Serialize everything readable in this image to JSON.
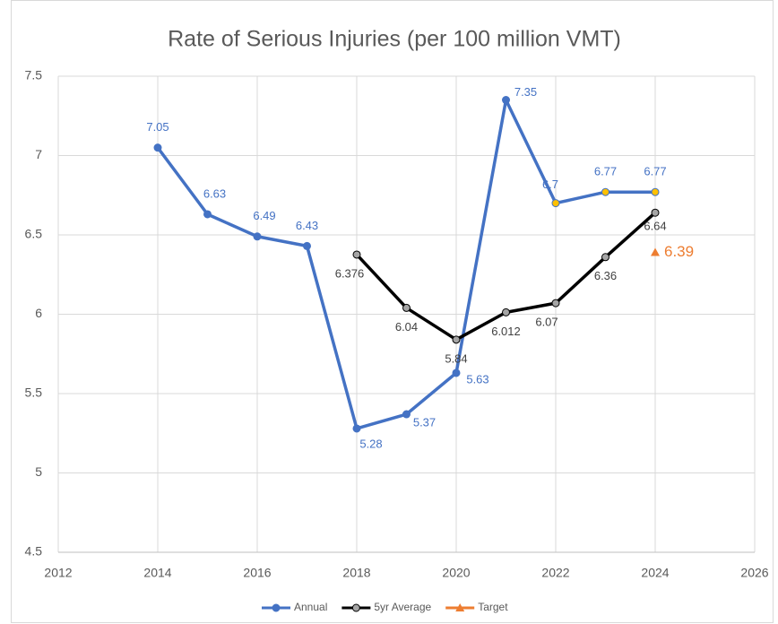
{
  "chart_data": {
    "type": "line",
    "title": "Rate of Serious Injuries (per 100 million VMT)",
    "xlim": [
      2012,
      2026
    ],
    "xticks": [
      2012,
      2014,
      2016,
      2018,
      2020,
      2022,
      2024,
      2026
    ],
    "ylim": [
      4.5,
      7.5
    ],
    "yticks": [
      4.5,
      5,
      5.5,
      6,
      6.5,
      7,
      7.5
    ],
    "grid": true,
    "legend": "bottom",
    "series": [
      {
        "name": "Annual",
        "color": "#4472c4",
        "marker": "circle",
        "x": [
          2014,
          2015,
          2016,
          2017,
          2018,
          2019,
          2020,
          2021,
          2022,
          2023,
          2024
        ],
        "values": [
          7.05,
          6.63,
          6.49,
          6.43,
          5.28,
          5.37,
          5.63,
          7.35,
          6.7,
          6.77,
          6.77
        ],
        "marker_fill": [
          "#4472c4",
          "#4472c4",
          "#4472c4",
          "#4472c4",
          "#4472c4",
          "#4472c4",
          "#4472c4",
          "#4472c4",
          "#ffc000",
          "#ffc000",
          "#ffc000"
        ]
      },
      {
        "name": "5yr Average",
        "color": "#000000",
        "marker": "circle",
        "x": [
          2018,
          2019,
          2020,
          2021,
          2022,
          2023,
          2024
        ],
        "values": [
          6.376,
          6.04,
          5.84,
          6.012,
          6.07,
          6.36,
          6.64
        ],
        "marker_fill": [
          "#a5a5a5",
          "#a5a5a5",
          "#a5a5a5",
          "#a5a5a5",
          "#a5a5a5",
          "#a5a5a5",
          "#a5a5a5"
        ]
      },
      {
        "name": "Target",
        "color": "#ed7d31",
        "marker": "triangle",
        "x": [
          2024
        ],
        "values": [
          6.39
        ],
        "marker_fill": [
          "#ed7d31"
        ]
      }
    ]
  }
}
